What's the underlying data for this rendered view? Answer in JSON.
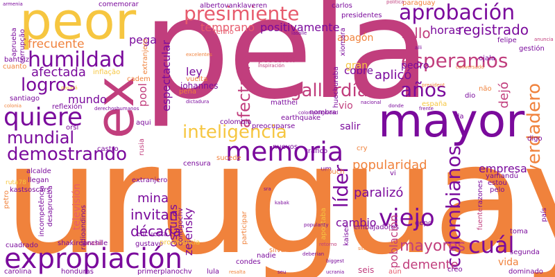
{
  "palette": {
    "background": "#ffffff",
    "magenta": "#c13e7d",
    "purple": "#7a0a9c",
    "orange": "#f0823c",
    "gold": "#f6c640",
    "pink": "#e75b6d"
  },
  "words": {
    "uruguay": "uruguay",
    "pela": "pela",
    "mayor": "mayor",
    "peor": "peor",
    "ex": "ex",
    "expropiacion": "expropiación",
    "memoria": "memoria",
    "demostrando": "demostrando",
    "aprobacion": "aprobación",
    "presimiente": "presimiente",
    "humildad": "humildad",
    "quiere": "quiere",
    "esperamos": "esperamos",
    "gallardia": "gallardía",
    "inteligencia": "inteligencia",
    "viejo": "viejo",
    "colombianos": "colombianos",
    "verdadero": "verdadero",
    "lider": "líder",
    "logros": "logros",
    "mundial": "mundial",
    "afectado": "afectado",
    "afectada": "afectada",
    "anos": "años",
    "cual": "cuál",
    "fallo": "fallo",
    "decada": "década",
    "mayores": "mayores",
    "registrado": "registrado",
    "horas": "horas",
    "positivamente": "positivamente",
    "temprano": "temprano",
    "frecuente": "frecuente",
    "pega": "pega",
    "popularidad": "popularidad",
    "paralizo": "paralizó",
    "aplico": "aplicó",
    "demente": "demente",
    "empresa": "empresa",
    "cambio": "cambio",
    "invitan": "invitan",
    "espectacular": "espectacular",
    "television": "televisión",
    "poblacion": "población",
    "oscuras": "oscuras",
    "zelensky": "zelensky",
    "mina": "mina",
    "apagon": "apagón",
    "cobre": "cobre",
    "gran": "gran",
    "pedro": "pedro",
    "ley": "ley",
    "vio": "vio",
    "salir": "salir",
    "mundo": "mundo",
    "pool": "pool",
    "santiago": "santiago",
    "vida": "vida",
    "dejo": "dejó",
    "carlos": "carlos",
    "presidentes": "presidentes",
    "paraguay": "paraguay",
    "dominado": "dominado",
    "seis": "seis",
    "nadie": "nadie",
    "aun": "aún"
  },
  "small_words": [
    "armenia",
    "comemorar",
    "albertovanklaveren",
    "tenho",
    "politica",
    "lasalle",
    "bahtsiz",
    "cuanto",
    "aprueba",
    "corrupção",
    "extranjero",
    "inflação",
    "pasará",
    "colonia",
    "reflexión",
    "alcalde",
    "ruta78",
    "kastsoscars",
    "petro",
    "incompetência",
    "desaprueba",
    "extranjero",
    "gustavo",
    "encuesta",
    "brasil",
    "providencia",
    "shakireanchile",
    "cuadrado",
    "carolina",
    "honduras",
    "primerplanochv",
    "lula",
    "condes",
    "silva",
    "participar",
    "apostaba",
    "embajadores",
    "kaiser",
    "qepd",
    "yamandú",
    "estou",
    "pelo",
    "toma",
    "segunda",
    "país",
    "creo",
    "digo",
    "fuente",
    "razones",
    "nuevos",
    "tráfico",
    "castro",
    "aqui",
    "rusia",
    "orsi",
    "llegan",
    "radioandinos",
    "contigochv",
    "huechuraba",
    "xiomara",
    "posesión",
    "inspiración",
    "johannes",
    "matthei",
    "nombra",
    "earthquake",
    "colombia",
    "preocuparse",
    "colonialdignidad",
    "derechoshumanos",
    "vuelta",
    "peña",
    "dictadura",
    "sucede",
    "censura",
    "nacional",
    "frente",
    "president",
    "dio",
    "não",
    "españa",
    "da",
    "felipe",
    "gestión",
    "anuncia",
    "conversado",
    "cadem",
    "um",
    "vi",
    "cry",
    "hecho",
    "excelentes",
    "alli",
    "ojala",
    "umbuch",
    "sitio",
    "biggest",
    "retorno",
    "deberian",
    "resalta",
    "popularity",
    "seu",
    "sra",
    "kabak",
    "ucrania",
    "donde",
    "cual"
  ]
}
